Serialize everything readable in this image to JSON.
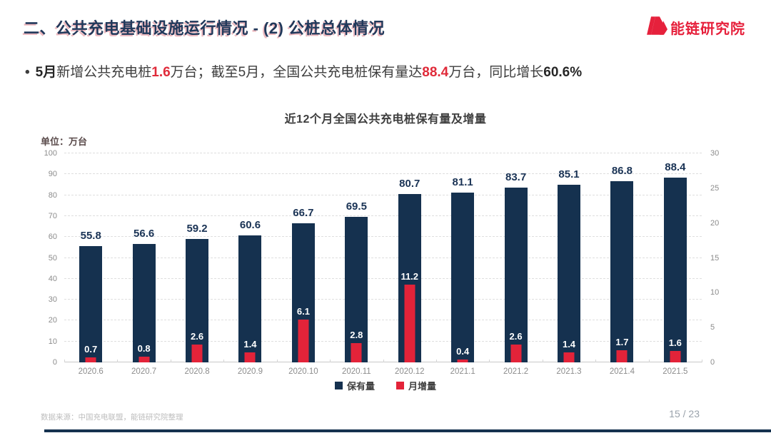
{
  "header": {
    "title": "二、公共充电基础设施运行情况 - (2) 公桩总体情况",
    "logo_text": "能链研究院"
  },
  "bullet": {
    "marker": "•",
    "seg_month": "5月",
    "seg_a": "新增公共充电桩",
    "seg_val1": "1.6",
    "seg_b": "万台；截至5月，全国公共充电桩保有量达",
    "seg_val2": "88.4",
    "seg_c": "万台，同比增长",
    "seg_growth": "60.6%"
  },
  "chart_data": {
    "type": "bar",
    "title": "近12个月全国公共充电桩保有量及增量",
    "unit_label": "单位：万台",
    "categories": [
      "2020.6",
      "2020.7",
      "2020.8",
      "2020.9",
      "2020.10",
      "2020.11",
      "2020.12",
      "2021.1",
      "2021.2",
      "2021.3",
      "2021.4",
      "2021.5"
    ],
    "series": [
      {
        "name": "保有量",
        "color": "#15314F",
        "axis": "left",
        "values": [
          55.8,
          56.6,
          59.2,
          60.6,
          66.7,
          69.5,
          80.7,
          81.1,
          83.7,
          85.1,
          86.8,
          88.4
        ]
      },
      {
        "name": "月增量",
        "color": "#E32339",
        "axis": "right",
        "values": [
          0.7,
          0.8,
          2.6,
          1.4,
          6.1,
          2.8,
          11.2,
          0.4,
          2.6,
          1.4,
          1.7,
          1.6
        ]
      }
    ],
    "left_axis": {
      "min": 0,
      "max": 100,
      "step": 10
    },
    "right_axis": {
      "min": 0,
      "max": 30,
      "step": 5
    },
    "grid": "horizontal-dashed",
    "legend_position": "bottom"
  },
  "footer": {
    "source": "数据来源：中国充电联盟，能链研究院整理",
    "page": "15 / 23"
  },
  "colors": {
    "title_navy": "#21395B",
    "bar_navy": "#15314F",
    "bar_red": "#E32339",
    "logo_red": "#E6213C",
    "text_red": "#E02B3A"
  }
}
